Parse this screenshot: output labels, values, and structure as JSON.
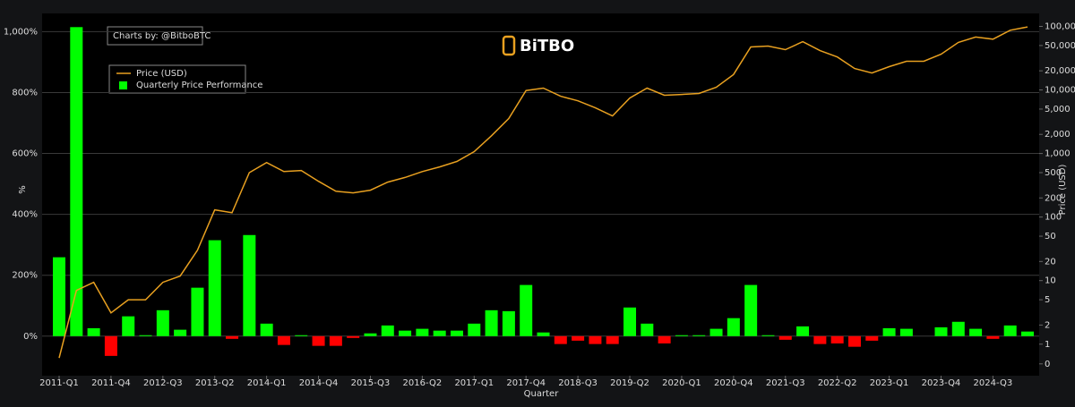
{
  "chart_data": {
    "type": "bar",
    "credit": "Charts by: @BitboBTC",
    "brand": "BiTBO",
    "xlabel": "Quarter",
    "ylabel": "%",
    "y2label": "Price (USD)",
    "categories": [
      "2011-Q1",
      null,
      null,
      "2011-Q4",
      null,
      null,
      "2012-Q3",
      null,
      null,
      "2013-Q2",
      null,
      null,
      "2014-Q1",
      null,
      null,
      "2014-Q4",
      null,
      null,
      "2015-Q3",
      null,
      null,
      "2016-Q2",
      null,
      null,
      "2017-Q1",
      null,
      null,
      "2017-Q4",
      null,
      null,
      "2018-Q3",
      null,
      null,
      "2019-Q2",
      null,
      null,
      "2020-Q1",
      null,
      null,
      "2020-Q4",
      null,
      null,
      "2021-Q3",
      null,
      null,
      "2022-Q2",
      null,
      null,
      "2023-Q1",
      null,
      null,
      "2023-Q4",
      null,
      null,
      "2024-Q3",
      null,
      null
    ],
    "series": [
      {
        "name": "Quarterly Price Performance",
        "type": "bar",
        "color": "#00ff00",
        "negative_color": "#ff0000",
        "values": [
          259,
          1015,
          26,
          -65,
          65,
          3,
          85,
          21,
          159,
          315,
          -9,
          332,
          41,
          -29,
          3,
          -32,
          -32,
          -6,
          9,
          35,
          18,
          24,
          18,
          18,
          41,
          85,
          82,
          168,
          12,
          -26,
          -15,
          -26,
          -26,
          94,
          41,
          -24,
          3,
          3,
          24,
          59,
          168,
          3,
          -12,
          32,
          -26,
          -24,
          -35,
          -15,
          26,
          24,
          0,
          29,
          47,
          24,
          -9,
          35,
          15
        ]
      },
      {
        "name": "Price (USD)",
        "type": "line",
        "axis": "y2",
        "color": "#e8a020",
        "values": [
          0.3,
          7,
          9.4,
          3.1,
          5,
          5,
          9.4,
          11.8,
          30,
          130,
          117,
          500,
          720,
          520,
          540,
          365,
          255,
          240,
          265,
          355,
          420,
          520,
          615,
          750,
          1070,
          1900,
          3550,
          9800,
          10700,
          7950,
          6750,
          5250,
          3900,
          7450,
          10700,
          8250,
          8500,
          8800,
          11000,
          17500,
          47500,
          49000,
          43000,
          57500,
          41500,
          33000,
          21700,
          18500,
          23300,
          28300,
          28300,
          36500,
          56000,
          68000,
          63000,
          87000,
          98000
        ]
      }
    ],
    "ylim": [
      -130,
      1060
    ],
    "yticks": [
      {
        "value": 0,
        "label": "0%"
      },
      {
        "value": 200,
        "label": "200%"
      },
      {
        "value": 400,
        "label": "400%"
      },
      {
        "value": 600,
        "label": "600%"
      },
      {
        "value": 800,
        "label": "800%"
      },
      {
        "value": 1000,
        "label": "1,000%"
      }
    ],
    "y2scale": "symlog",
    "y2lim": [
      -0.6,
      160000
    ],
    "y2ticks": [
      0,
      1,
      2,
      5,
      10,
      20,
      50,
      100,
      200,
      500,
      {
        "value": 1000,
        "label": "1,000"
      },
      {
        "value": 2000,
        "label": "2,000"
      },
      {
        "value": 5000,
        "label": "5,000"
      },
      {
        "value": 10000,
        "label": "10,000"
      },
      {
        "value": 20000,
        "label": "20,000"
      },
      {
        "value": 50000,
        "label": "50,000"
      },
      {
        "value": 100000,
        "label": "100,000"
      }
    ],
    "grid": true,
    "legend": "top-left"
  }
}
